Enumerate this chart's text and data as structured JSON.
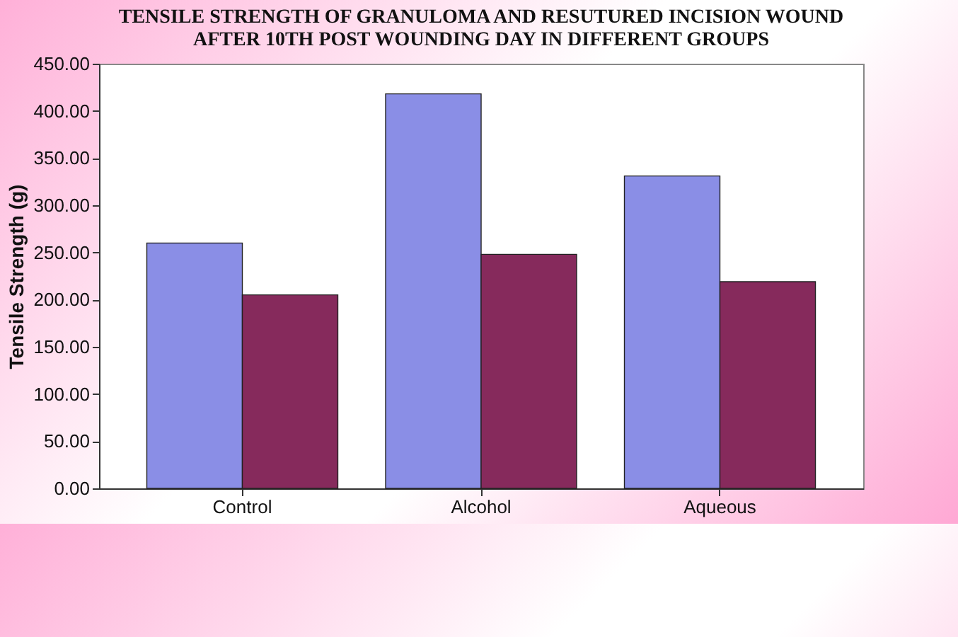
{
  "chart_data": {
    "type": "bar",
    "title": "TENSILE STRENGTH OF GRANULOMA AND RESUTURED INCISION WOUND AFTER 10TH POST WOUNDING DAY IN DIFFERENT GROUPS",
    "ylabel": "Tensile Strength (g)",
    "categories": [
      "Control",
      "Alcohol",
      "Aqueous"
    ],
    "series": [
      {
        "color": "#8a8ee6",
        "values": [
          260,
          418,
          331
        ]
      },
      {
        "color": "#862a5c",
        "values": [
          205,
          248,
          219
        ]
      }
    ],
    "ylim": [
      0,
      450
    ],
    "yticks": [
      {
        "value": 0,
        "label": "0.00"
      },
      {
        "value": 50,
        "label": "50.00"
      },
      {
        "value": 100,
        "label": "100.00"
      },
      {
        "value": 150,
        "label": "150.00"
      },
      {
        "value": 200,
        "label": "200.00"
      },
      {
        "value": 250,
        "label": "250.00"
      },
      {
        "value": 300,
        "label": "300.00"
      },
      {
        "value": 350,
        "label": "350.00"
      },
      {
        "value": 400,
        "label": "400.00"
      },
      {
        "value": 450,
        "label": "450.00"
      }
    ],
    "grid": false,
    "legend": false
  }
}
